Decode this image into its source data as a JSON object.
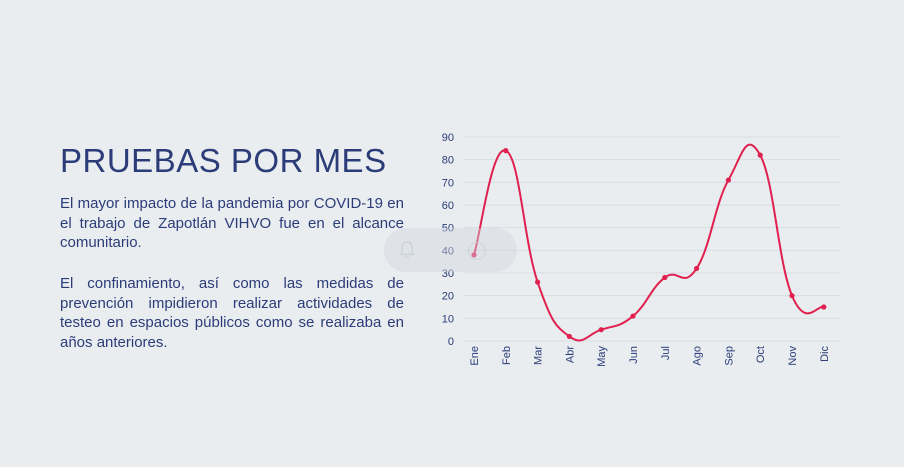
{
  "heading": "PRUEBAS POR MES",
  "paragraph1": "El mayor impacto de la pandemia por COVID-19 en el trabajo de Zapotlán VIHVO fue en el alcance comunitario.",
  "paragraph2": "El confinamiento, así como las medidas de prevención impidieron realizar actividades de testeo en espacios públicos como se realizaba en años anteriores.",
  "colors": {
    "text": "#2b3c78",
    "line": "#e0204f",
    "grid": "#d7dde3",
    "background": "#e9edf0"
  },
  "chart_data": {
    "type": "line",
    "categories": [
      "Ene",
      "Feb",
      "Mar",
      "Abr",
      "May",
      "Jun",
      "Jul",
      "Ago",
      "Sep",
      "Oct",
      "Nov",
      "Dic"
    ],
    "values": [
      38,
      84,
      26,
      2,
      5,
      11,
      28,
      32,
      71,
      82,
      20,
      15
    ],
    "ylim": [
      0,
      90
    ],
    "yticks": [
      0,
      10,
      20,
      30,
      40,
      50,
      60,
      70,
      80,
      90
    ],
    "grid": true,
    "smooth": true,
    "xlabel": "",
    "ylabel": ""
  }
}
